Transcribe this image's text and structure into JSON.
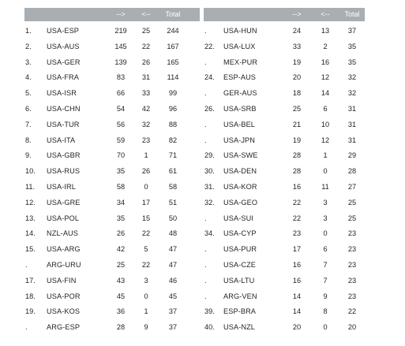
{
  "headers": {
    "forward": "-->",
    "back": "<--",
    "total": "Total"
  },
  "left_table": [
    {
      "rank": "1.",
      "pair": "USA-ESP",
      "forward": "219",
      "back": "25",
      "total": "244"
    },
    {
      "rank": "2.",
      "pair": "USA-AUS",
      "forward": "145",
      "back": "22",
      "total": "167"
    },
    {
      "rank": "3.",
      "pair": "USA-GER",
      "forward": "139",
      "back": "26",
      "total": "165"
    },
    {
      "rank": "4.",
      "pair": "USA-FRA",
      "forward": "83",
      "back": "31",
      "total": "114"
    },
    {
      "rank": "5.",
      "pair": "USA-ISR",
      "forward": "66",
      "back": "33",
      "total": "99"
    },
    {
      "rank": "6.",
      "pair": "USA-CHN",
      "forward": "54",
      "back": "42",
      "total": "96"
    },
    {
      "rank": "7.",
      "pair": "USA-TUR",
      "forward": "56",
      "back": "32",
      "total": "88"
    },
    {
      "rank": "8.",
      "pair": "USA-ITA",
      "forward": "59",
      "back": "23",
      "total": "82"
    },
    {
      "rank": "9.",
      "pair": "USA-GBR",
      "forward": "70",
      "back": "1",
      "total": "71"
    },
    {
      "rank": "10.",
      "pair": "USA-RUS",
      "forward": "35",
      "back": "26",
      "total": "61"
    },
    {
      "rank": "11.",
      "pair": "USA-IRL",
      "forward": "58",
      "back": "0",
      "total": "58"
    },
    {
      "rank": "12.",
      "pair": "USA-GRE",
      "forward": "34",
      "back": "17",
      "total": "51"
    },
    {
      "rank": "13.",
      "pair": "USA-POL",
      "forward": "35",
      "back": "15",
      "total": "50"
    },
    {
      "rank": "14.",
      "pair": "NZL-AUS",
      "forward": "26",
      "back": "22",
      "total": "48"
    },
    {
      "rank": "15.",
      "pair": "USA-ARG",
      "forward": "42",
      "back": "5",
      "total": "47"
    },
    {
      "rank": ".",
      "pair": "ARG-URU",
      "forward": "25",
      "back": "22",
      "total": "47"
    },
    {
      "rank": "17.",
      "pair": "USA-FIN",
      "forward": "43",
      "back": "3",
      "total": "46"
    },
    {
      "rank": "18.",
      "pair": "USA-POR",
      "forward": "45",
      "back": "0",
      "total": "45"
    },
    {
      "rank": "19.",
      "pair": "USA-KOS",
      "forward": "36",
      "back": "1",
      "total": "37"
    },
    {
      "rank": ".",
      "pair": "ARG-ESP",
      "forward": "28",
      "back": "9",
      "total": "37"
    }
  ],
  "right_table": [
    {
      "rank": ".",
      "pair": "USA-HUN",
      "forward": "24",
      "back": "13",
      "total": "37"
    },
    {
      "rank": "22.",
      "pair": "USA-LUX",
      "forward": "33",
      "back": "2",
      "total": "35"
    },
    {
      "rank": ".",
      "pair": "MEX-PUR",
      "forward": "19",
      "back": "16",
      "total": "35"
    },
    {
      "rank": "24.",
      "pair": "ESP-AUS",
      "forward": "20",
      "back": "12",
      "total": "32"
    },
    {
      "rank": ".",
      "pair": "GER-AUS",
      "forward": "18",
      "back": "14",
      "total": "32"
    },
    {
      "rank": "26.",
      "pair": "USA-SRB",
      "forward": "25",
      "back": "6",
      "total": "31"
    },
    {
      "rank": ".",
      "pair": "USA-BEL",
      "forward": "21",
      "back": "10",
      "total": "31"
    },
    {
      "rank": ".",
      "pair": "USA-JPN",
      "forward": "19",
      "back": "12",
      "total": "31"
    },
    {
      "rank": "29.",
      "pair": "USA-SWE",
      "forward": "28",
      "back": "1",
      "total": "29"
    },
    {
      "rank": "30.",
      "pair": "USA-DEN",
      "forward": "28",
      "back": "0",
      "total": "28"
    },
    {
      "rank": "31.",
      "pair": "USA-KOR",
      "forward": "16",
      "back": "11",
      "total": "27"
    },
    {
      "rank": "32.",
      "pair": "USA-GEO",
      "forward": "22",
      "back": "3",
      "total": "25"
    },
    {
      "rank": ".",
      "pair": "USA-SUI",
      "forward": "22",
      "back": "3",
      "total": "25"
    },
    {
      "rank": "34.",
      "pair": "USA-CYP",
      "forward": "23",
      "back": "0",
      "total": "23"
    },
    {
      "rank": ".",
      "pair": "USA-PUR",
      "forward": "17",
      "back": "6",
      "total": "23"
    },
    {
      "rank": ".",
      "pair": "USA-CZE",
      "forward": "16",
      "back": "7",
      "total": "23"
    },
    {
      "rank": ".",
      "pair": "USA-LTU",
      "forward": "16",
      "back": "7",
      "total": "23"
    },
    {
      "rank": ".",
      "pair": "ARG-VEN",
      "forward": "14",
      "back": "9",
      "total": "23"
    },
    {
      "rank": "39.",
      "pair": "ESP-BRA",
      "forward": "14",
      "back": "8",
      "total": "22"
    },
    {
      "rank": "40.",
      "pair": "USA-NZL",
      "forward": "20",
      "back": "0",
      "total": "20"
    }
  ]
}
